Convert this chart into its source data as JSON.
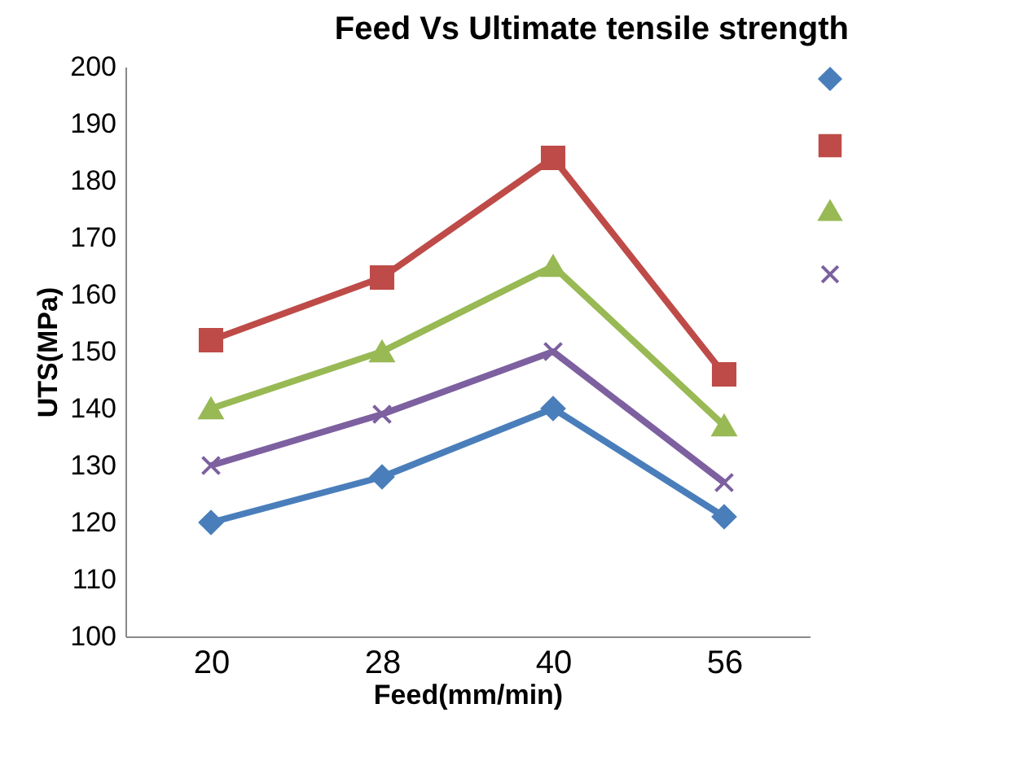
{
  "chart_data": {
    "type": "line",
    "title": "Feed Vs Ultimate tensile strength",
    "xlabel": "Feed(mm/min)",
    "ylabel": "UTS(MPa)",
    "categories": [
      "20",
      "28",
      "40",
      "56"
    ],
    "series": [
      {
        "color": "#4a7ebb",
        "marker": "diamond",
        "values": [
          120,
          128,
          140,
          121
        ]
      },
      {
        "color": "#be4b48",
        "marker": "square",
        "values": [
          152,
          163,
          184,
          146
        ]
      },
      {
        "color": "#98b954",
        "marker": "triangle",
        "values": [
          140,
          150,
          165,
          137
        ]
      },
      {
        "color": "#7d60a0",
        "marker": "cross",
        "values": [
          130,
          139,
          150,
          127
        ]
      }
    ],
    "ylim": [
      100,
      200
    ],
    "yticks": [
      100,
      110,
      120,
      130,
      140,
      150,
      160,
      170,
      180,
      190,
      200
    ],
    "grid": false,
    "line_style": "solid"
  }
}
